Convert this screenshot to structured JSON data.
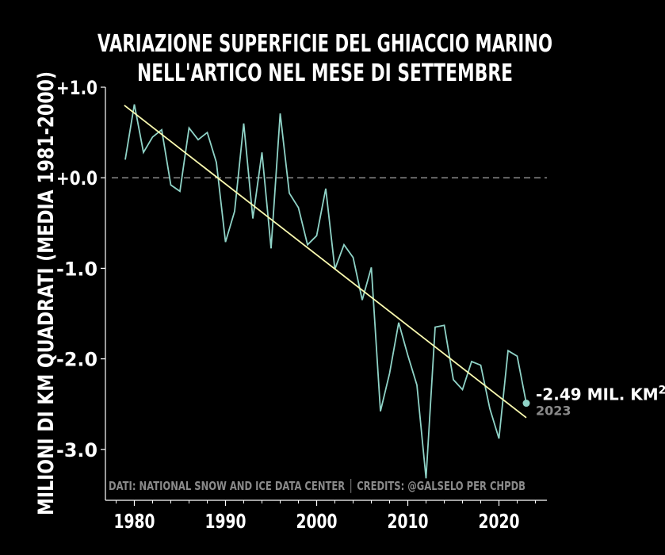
{
  "chart_data": {
    "type": "line",
    "title_lines": [
      "VARIAZIONE SUPERFICIE DEL GHIACCIO MARINO",
      "NELL'ARTICO NEL MESE DI SETTEMBRE"
    ],
    "ylabel": "MILIONI DI KM QUADRATI (MEDIA 1981-2000)",
    "xlabel": "",
    "xlim": [
      1976.5,
      2025.5
    ],
    "ylim": [
      -3.5,
      1.0
    ],
    "xticks": [
      1980,
      1990,
      2000,
      2010,
      2020
    ],
    "xtick_labels": [
      "1980",
      "1990",
      "2000",
      "2010",
      "2020"
    ],
    "yticks": [
      1.0,
      0.0,
      -1.0,
      -2.0,
      -3.0
    ],
    "ytick_labels": [
      "+1.0",
      "+0.0",
      "-1.0",
      "-2.0",
      "-3.0"
    ],
    "grid": false,
    "reference_line": {
      "y": 0.0,
      "style": "dashed",
      "color": "#8c8c8c"
    },
    "series": [
      {
        "color": "#8fd3c7",
        "x": [
          1979,
          1980,
          1981,
          1982,
          1983,
          1984,
          1985,
          1986,
          1987,
          1988,
          1989,
          1990,
          1991,
          1992,
          1993,
          1994,
          1995,
          1996,
          1997,
          1998,
          1999,
          2000,
          2001,
          2002,
          2003,
          2004,
          2005,
          2006,
          2007,
          2008,
          2009,
          2010,
          2011,
          2012,
          2013,
          2014,
          2015,
          2016,
          2017,
          2018,
          2019,
          2020,
          2021,
          2022,
          2023
        ],
        "y": [
          0.2,
          0.81,
          0.28,
          0.45,
          0.53,
          -0.08,
          -0.15,
          0.55,
          0.42,
          0.5,
          0.17,
          -0.71,
          -0.37,
          0.6,
          -0.45,
          0.28,
          -0.78,
          0.71,
          -0.17,
          -0.33,
          -0.74,
          -0.64,
          -0.12,
          -1.01,
          -0.74,
          -0.88,
          -1.35,
          -0.99,
          -2.58,
          -2.16,
          -1.6,
          -1.96,
          -2.29,
          -3.32,
          -1.65,
          -1.63,
          -2.23,
          -2.34,
          -2.03,
          -2.07,
          -2.55,
          -2.88,
          -1.91,
          -1.97,
          -2.49
        ]
      }
    ],
    "trend": {
      "color": "#fbfbb0",
      "x": [
        1978.9,
        2023.0
      ],
      "y": [
        0.8,
        -2.65
      ]
    },
    "endpoint": {
      "x": 2023,
      "y": -2.49,
      "value_label": "-2.49 MIL. KM",
      "value_superscript": "2",
      "year_label": "2023"
    },
    "annotation": "DATI: NATIONAL SNOW AND ICE DATA CENTER │ CREDITS: @GALSELO PER CHPDB"
  },
  "colors": {
    "background": "#000000",
    "text": "#ffffff",
    "series": "#8fd3c7",
    "trend": "#fbfbb0",
    "reference": "#8c8c8c",
    "muted": "#8a8a8a"
  }
}
